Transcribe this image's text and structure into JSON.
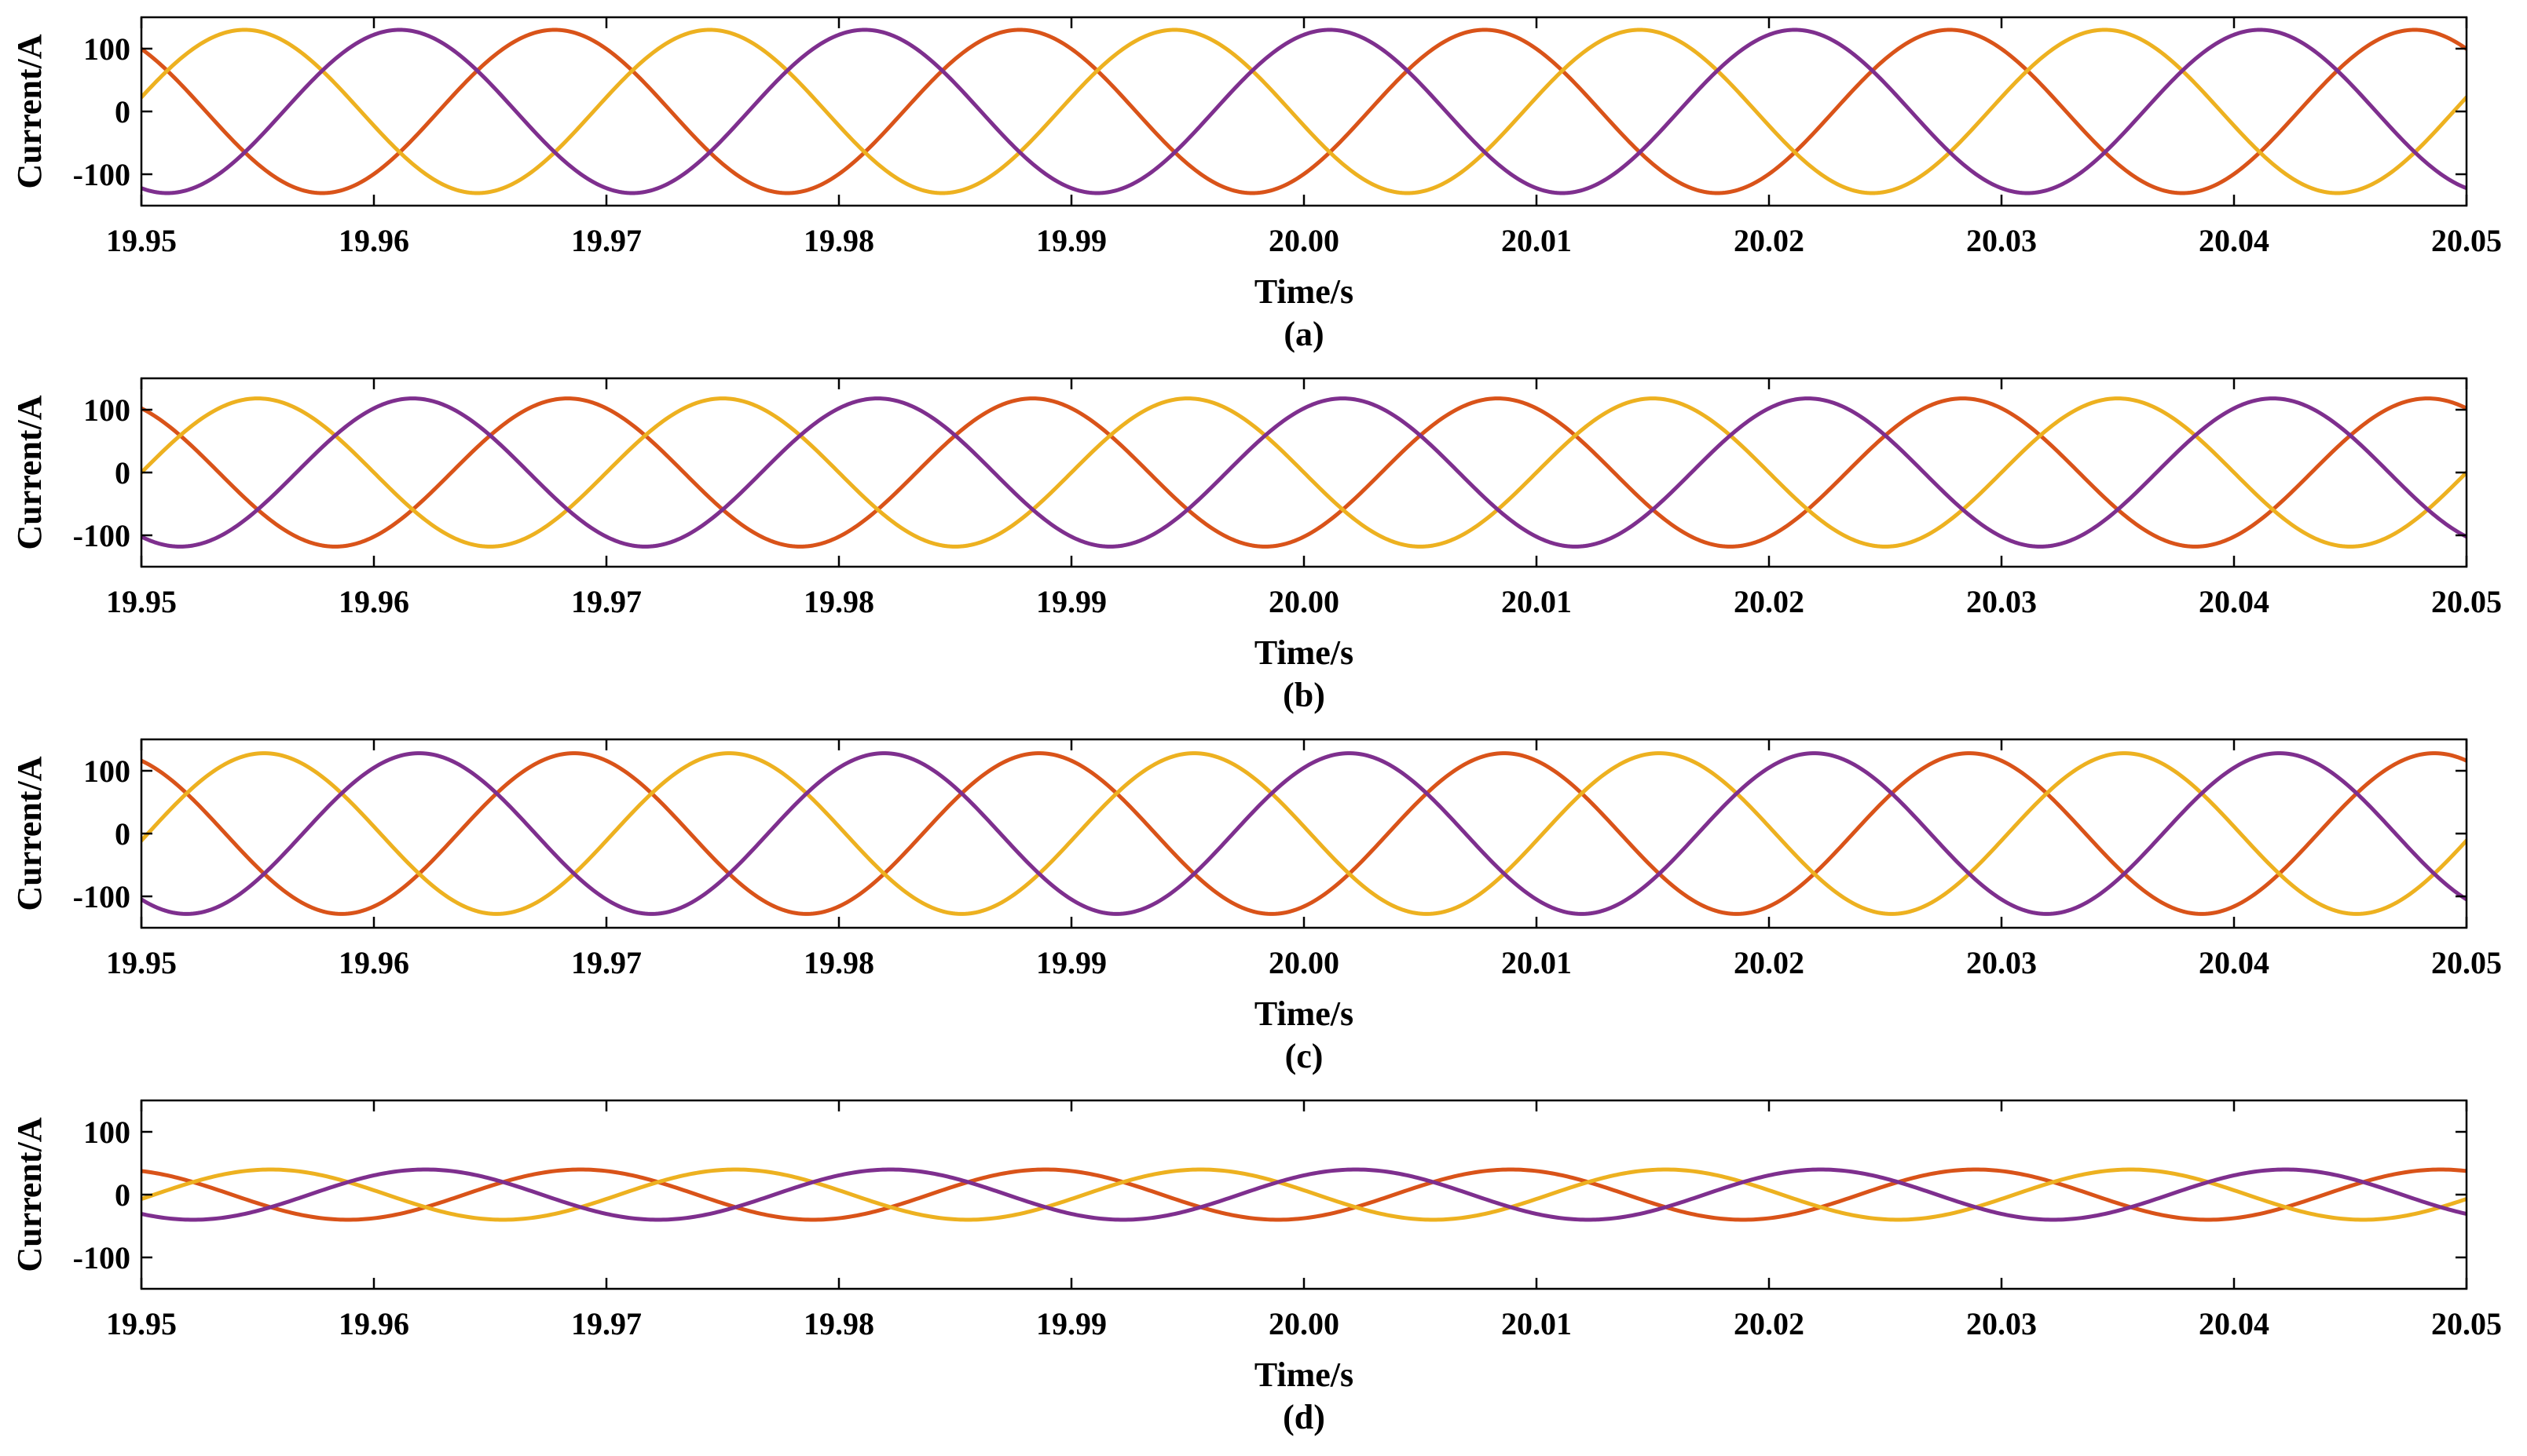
{
  "colors": {
    "phase_orange": "#D95319",
    "phase_yellow": "#EDB120",
    "phase_purple": "#7E2F8E",
    "axis": "#000000",
    "background": "#FFFFFF"
  },
  "chart_data": [
    {
      "type": "line",
      "caption": "(a)",
      "xlabel": "Time/s",
      "ylabel": "Current/A",
      "xlim": [
        19.95,
        20.05
      ],
      "ylim": [
        -150,
        150
      ],
      "x_ticks": [
        "19.95",
        "19.96",
        "19.97",
        "19.98",
        "19.99",
        "20.00",
        "20.01",
        "20.02",
        "20.03",
        "20.04",
        "20.05"
      ],
      "y_ticks": [
        "100",
        "0",
        "-100"
      ],
      "grid": false,
      "frequency_hz": 50,
      "series": [
        {
          "color": "#D95319",
          "amplitude": 130,
          "phase_at_start_deg": 130
        },
        {
          "color": "#EDB120",
          "amplitude": 130,
          "phase_at_start_deg": 10
        },
        {
          "color": "#7E2F8E",
          "amplitude": 130,
          "phase_at_start_deg": -110
        }
      ]
    },
    {
      "type": "line",
      "caption": "(b)",
      "xlabel": "Time/s",
      "ylabel": "Current/A",
      "xlim": [
        19.95,
        20.05
      ],
      "ylim": [
        -150,
        150
      ],
      "x_ticks": [
        "19.95",
        "19.96",
        "19.97",
        "19.98",
        "19.99",
        "20.00",
        "20.01",
        "20.02",
        "20.03",
        "20.04",
        "20.05"
      ],
      "y_ticks": [
        "100",
        "0",
        "-100"
      ],
      "grid": false,
      "frequency_hz": 50,
      "series": [
        {
          "color": "#D95319",
          "amplitude": 118,
          "phase_at_start_deg": 120
        },
        {
          "color": "#EDB120",
          "amplitude": 118,
          "phase_at_start_deg": 0
        },
        {
          "color": "#7E2F8E",
          "amplitude": 118,
          "phase_at_start_deg": -120
        }
      ]
    },
    {
      "type": "line",
      "caption": "(c)",
      "xlabel": "Time/s",
      "ylabel": "Current/A",
      "xlim": [
        19.95,
        20.05
      ],
      "ylim": [
        -150,
        150
      ],
      "x_ticks": [
        "19.95",
        "19.96",
        "19.97",
        "19.98",
        "19.99",
        "20.00",
        "20.01",
        "20.02",
        "20.03",
        "20.04",
        "20.05"
      ],
      "y_ticks": [
        "100",
        "0",
        "-100"
      ],
      "grid": false,
      "frequency_hz": 50,
      "series": [
        {
          "color": "#D95319",
          "amplitude": 128,
          "phase_at_start_deg": 115
        },
        {
          "color": "#EDB120",
          "amplitude": 128,
          "phase_at_start_deg": -5
        },
        {
          "color": "#7E2F8E",
          "amplitude": 128,
          "phase_at_start_deg": -125
        }
      ]
    },
    {
      "type": "line",
      "caption": "(d)",
      "xlabel": "Time/s",
      "ylabel": "Current/A",
      "xlim": [
        19.95,
        20.05
      ],
      "ylim": [
        -150,
        150
      ],
      "x_ticks": [
        "19.95",
        "19.96",
        "19.97",
        "19.98",
        "19.99",
        "20.00",
        "20.01",
        "20.02",
        "20.03",
        "20.04",
        "20.05"
      ],
      "y_ticks": [
        "100",
        "0",
        "-100"
      ],
      "grid": false,
      "frequency_hz": 50,
      "series": [
        {
          "color": "#D95319",
          "amplitude": 40,
          "phase_at_start_deg": 110
        },
        {
          "color": "#EDB120",
          "amplitude": 40,
          "phase_at_start_deg": -10
        },
        {
          "color": "#7E2F8E",
          "amplitude": 40,
          "phase_at_start_deg": -130
        }
      ]
    }
  ]
}
